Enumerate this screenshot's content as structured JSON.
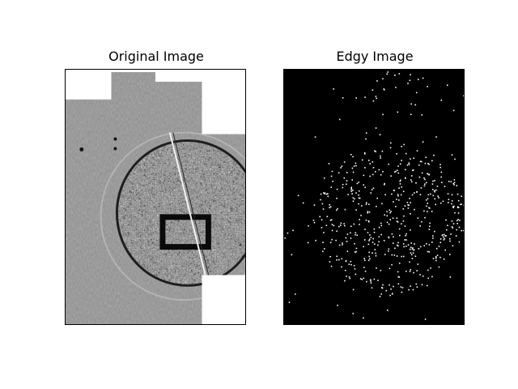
{
  "figure": {
    "left_title": "Original Image",
    "right_title": "Edgy Image"
  },
  "colors": {
    "background": "#ffffff",
    "original_gray": "#8c8c8c",
    "edgy_background": "#000000",
    "edgy_dots": "#ffffff"
  }
}
